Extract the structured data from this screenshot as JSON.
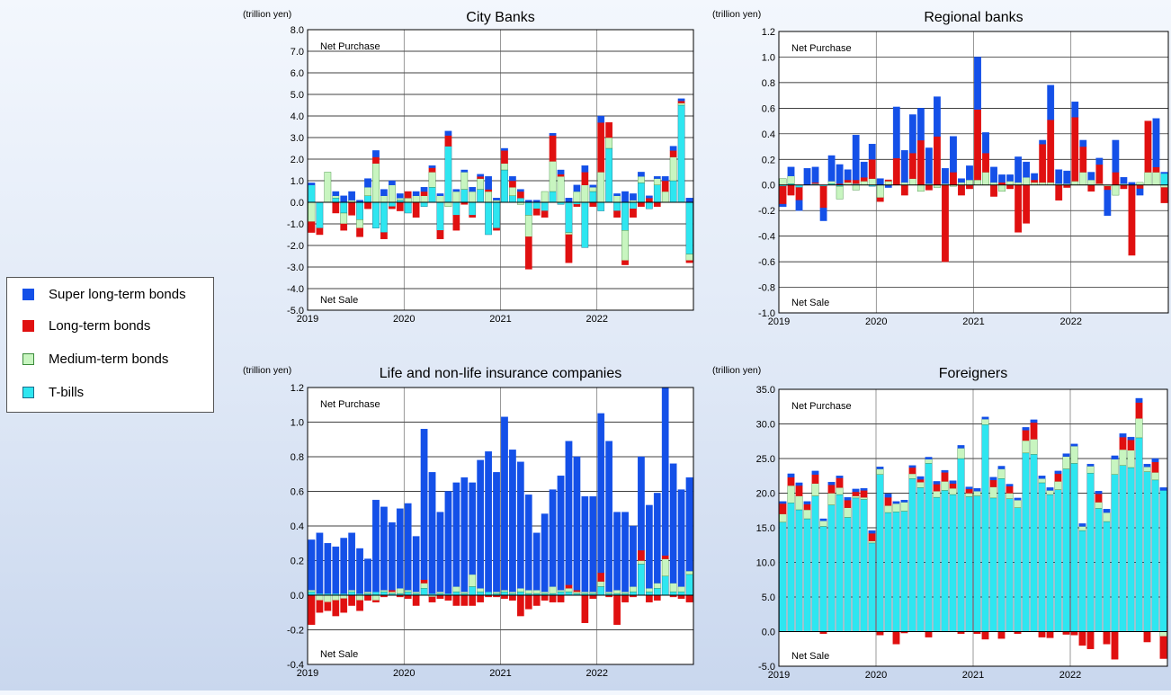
{
  "colors": {
    "super": "#1450e8",
    "long": "#e01010",
    "medium": "#c8f5c0",
    "tbills": "#2ee6f0"
  },
  "legend": {
    "super": "Super long-term bonds",
    "long": "Long-term bonds",
    "medium": "Medium-term bonds",
    "tbills": "T-bills"
  },
  "chart_data": [
    {
      "type": "bar",
      "title": "City Banks",
      "ylabel": "(trillion yen)",
      "ylim": [
        -5,
        8
      ],
      "yticks": [
        -5,
        -4,
        -3,
        -2,
        -1,
        0,
        1,
        2,
        3,
        4,
        5,
        6,
        7,
        8
      ],
      "ytick_decimals": 1,
      "x_labels": [
        "2019",
        "2020",
        "2021",
        "2022"
      ],
      "annot_top": "Net Purchase",
      "annot_bottom": "Net Sale",
      "months": 48,
      "series": {
        "super": [
          0.1,
          0,
          0,
          0.2,
          0.3,
          0.4,
          0.1,
          0.4,
          0.3,
          0.3,
          0.2,
          0.2,
          0,
          0.2,
          0.2,
          0.1,
          0.1,
          0.2,
          0.1,
          0.1,
          0.2,
          0.1,
          0.6,
          0.1,
          0.1,
          0.2,
          0.1,
          0.1,
          0.1,
          0,
          0.1,
          0.2,
          0.2,
          0.3,
          0.3,
          0.1,
          0.3,
          0,
          0.1,
          0.5,
          0.3,
          0.2,
          0.1,
          0.1,
          0.2,
          0.2,
          0.1,
          0.2
        ],
        "long": [
          -0.5,
          -0.3,
          0,
          -0.5,
          -0.3,
          -0.6,
          -0.4,
          -0.3,
          0.3,
          -0.3,
          -0.1,
          -0.4,
          0.3,
          -0.7,
          0.2,
          0.2,
          -0.4,
          0.5,
          -0.7,
          -0.1,
          -0.1,
          0.1,
          0.1,
          -0.1,
          0.6,
          0.3,
          0.3,
          -1.5,
          -0.3,
          -0.3,
          1.2,
          0.1,
          -1.3,
          -0.1,
          0.6,
          -0.2,
          2.3,
          0.7,
          -0.3,
          -0.2,
          -0.4,
          -0.2,
          0.2,
          -0.2,
          0.5,
          0.3,
          0.1,
          -0.1
        ],
        "medium": [
          -0.9,
          0,
          1.4,
          0.1,
          -0.5,
          0.1,
          -0.4,
          0.4,
          1.8,
          0.3,
          0.8,
          0.1,
          0.2,
          0.3,
          0.3,
          0.7,
          0.3,
          -0.2,
          0.5,
          0.8,
          0.5,
          0.5,
          0.5,
          0.1,
          0.3,
          0.4,
          -0.1,
          -1,
          0,
          0.5,
          1.4,
          1.2,
          -0.1,
          0.5,
          0.8,
          0.2,
          1.4,
          0.5,
          0.3,
          -1.4,
          0.1,
          0.3,
          0,
          0.3,
          0.5,
          1.1,
          0.1,
          -0.3
        ],
        "tbills": [
          0.8,
          -1.2,
          0,
          0.2,
          -0.5,
          0,
          -0.8,
          0.3,
          -1.2,
          -1.4,
          -0.2,
          0.1,
          -0.5,
          0,
          -0.2,
          0.7,
          -1.3,
          2.6,
          -0.6,
          0.6,
          -0.6,
          0.6,
          -1.5,
          -1.2,
          1.5,
          0.3,
          0.2,
          -0.6,
          -0.3,
          -0.4,
          0.5,
          -0.1,
          -1.4,
          -0.1,
          -2.1,
          0.5,
          -0.4,
          2.5,
          -0.4,
          -1.3,
          -0.3,
          0.9,
          -0.3,
          0.8,
          0,
          1,
          4.5,
          -2.4
        ]
      }
    },
    {
      "type": "bar",
      "title": "Regional banks",
      "ylabel": "(trillion yen)",
      "ylim": [
        -1,
        1.2
      ],
      "yticks": [
        -1,
        -0.8,
        -0.6,
        -0.4,
        -0.2,
        0,
        0.2,
        0.4,
        0.6,
        0.8,
        1,
        1.2
      ],
      "ytick_decimals": 1,
      "x_labels": [
        "2019",
        "2020",
        "2021",
        "2022"
      ],
      "annot_top": "Net Purchase",
      "annot_bottom": "Net Sale",
      "months": 48,
      "series": {
        "super": [
          -0.02,
          0.07,
          -0.08,
          0.13,
          0.12,
          -0.1,
          0.2,
          0.15,
          0.08,
          0.35,
          0.12,
          0.12,
          0.05,
          -0.02,
          0.4,
          0.25,
          0.3,
          0.25,
          0.28,
          0.31,
          0.12,
          0.28,
          0.03,
          0.11,
          0.41,
          0.16,
          0.12,
          0.06,
          0.05,
          0.2,
          0.12,
          0.05,
          0.03,
          0.27,
          0.11,
          0.1,
          0.12,
          0.05,
          0.06,
          0.05,
          -0.2,
          0.25,
          0.05,
          0.02,
          -0.05,
          0,
          0.38,
          0.01
        ],
        "long": [
          -0.14,
          -0.08,
          -0.1,
          0,
          0.01,
          -0.17,
          0,
          0.01,
          0.02,
          0.03,
          0.03,
          0.15,
          -0.03,
          0.01,
          0.21,
          -0.08,
          0.2,
          0.35,
          -0.04,
          0.38,
          -0.6,
          0.1,
          -0.08,
          -0.03,
          0.55,
          0.15,
          -0.09,
          0.02,
          -0.03,
          -0.37,
          -0.3,
          0.02,
          0.3,
          0.49,
          -0.12,
          -0.02,
          0.5,
          0.2,
          -0.05,
          0.15,
          -0.03,
          0.1,
          -0.03,
          -0.55,
          -0.03,
          0.4,
          0.04,
          -0.12
        ],
        "medium": [
          0.05,
          0.06,
          0,
          0,
          0,
          0,
          0.02,
          -0.1,
          0.02,
          -0.04,
          0.03,
          0.05,
          -0.1,
          0.03,
          0,
          0.02,
          0.05,
          -0.05,
          0.01,
          -0.02,
          0.01,
          -0.01,
          0.02,
          0.04,
          0.04,
          0.1,
          0.02,
          -0.05,
          0.03,
          0.02,
          0.06,
          0.02,
          0.02,
          0.02,
          0.01,
          0.01,
          0.03,
          0.1,
          0.04,
          0.01,
          -0.01,
          -0.08,
          0.01,
          0,
          0.02,
          0.1,
          0.1,
          -0.02
        ],
        "tbills": [
          -0.01,
          0.01,
          -0.02,
          0,
          0.01,
          -0.01,
          0.01,
          -0.01,
          0,
          0.01,
          0,
          -0.01,
          0,
          0,
          0,
          0,
          0,
          0,
          0,
          0,
          0,
          0,
          0,
          0,
          0,
          0,
          0,
          0,
          0,
          0,
          0,
          0,
          0,
          0,
          0,
          0,
          0,
          0,
          0,
          0,
          0,
          0,
          0,
          0,
          0,
          0,
          0,
          0.09
        ]
      }
    },
    {
      "type": "bar",
      "title": "Life and non-life insurance companies",
      "ylabel": "(trillion yen)",
      "ylim": [
        -0.4,
        1.2
      ],
      "yticks": [
        -0.4,
        -0.2,
        0,
        0.2,
        0.4,
        0.6,
        0.8,
        1,
        1.2
      ],
      "ytick_decimals": 1,
      "x_labels": [
        "2019",
        "2020",
        "2021",
        "2022"
      ],
      "annot_top": "Net Purchase",
      "annot_bottom": "Net Sale",
      "months": 48,
      "series": {
        "super": [
          0.29,
          0.35,
          0.29,
          0.27,
          0.32,
          0.33,
          0.26,
          0.19,
          0.53,
          0.48,
          0.39,
          0.46,
          0.5,
          0.32,
          0.87,
          0.7,
          0.46,
          0.59,
          0.6,
          0.66,
          0.53,
          0.74,
          0.81,
          0.69,
          1,
          0.82,
          0.73,
          0.55,
          0.33,
          0.45,
          0.56,
          0.66,
          0.83,
          0.77,
          0.55,
          0.55,
          0.92,
          0.87,
          0.45,
          0.46,
          0.35,
          0.54,
          0.48,
          0.52,
          1.06,
          0.69,
          0.56,
          0.54
        ],
        "long": [
          -0.17,
          -0.07,
          -0.05,
          -0.09,
          -0.08,
          -0.06,
          -0.06,
          -0.03,
          -0.01,
          -0.01,
          0.01,
          -0.01,
          -0.02,
          -0.06,
          0.02,
          -0.03,
          -0.02,
          -0.03,
          -0.06,
          -0.06,
          -0.06,
          -0.04,
          -0.01,
          -0.01,
          -0.02,
          -0.03,
          -0.12,
          -0.08,
          -0.06,
          -0.03,
          -0.04,
          -0.04,
          0.02,
          0.01,
          -0.16,
          -0.02,
          0.05,
          -0.01,
          -0.17,
          -0.04,
          -0.01,
          0.06,
          -0.04,
          -0.03,
          0.02,
          -0.01,
          -0.02,
          -0.04
        ],
        "medium": [
          0.01,
          -0.03,
          -0.04,
          -0.03,
          -0.02,
          0.01,
          -0.03,
          0.01,
          -0.03,
          0.01,
          0.01,
          0.03,
          0.01,
          0.01,
          0.03,
          -0.01,
          0.01,
          0,
          0.03,
          0.01,
          0.07,
          0.02,
          0,
          0.01,
          0.01,
          0.01,
          0.02,
          0.02,
          0.02,
          0.01,
          0.04,
          0.01,
          0.02,
          0.01,
          0.01,
          0.01,
          0.03,
          0.01,
          0.02,
          0.01,
          0.03,
          0.02,
          0.02,
          0.03,
          0.1,
          0.05,
          0.03,
          0.02
        ],
        "tbills": [
          0.02,
          0.01,
          0.01,
          0.01,
          0.01,
          0.02,
          0.01,
          0.01,
          0.02,
          0.02,
          0.01,
          0.01,
          0.02,
          0.01,
          0.04,
          0.01,
          0.01,
          0.01,
          0.02,
          0.01,
          0.05,
          0.02,
          0.02,
          0.01,
          0.02,
          0.01,
          0.02,
          0.01,
          0.01,
          0.01,
          0.01,
          0.02,
          0.02,
          0.01,
          0.01,
          0.01,
          0.05,
          0.01,
          0.01,
          0.01,
          0.02,
          0.18,
          0.02,
          0.04,
          0.11,
          0.02,
          0.02,
          0.12
        ]
      }
    },
    {
      "type": "bar",
      "title": "Foreigners",
      "ylabel": "(trillion yen)",
      "ylim": [
        -5,
        35
      ],
      "yticks": [
        -5,
        0,
        5,
        10,
        15,
        20,
        25,
        30,
        35
      ],
      "ytick_decimals": 1,
      "x_labels": [
        "2019",
        "2020",
        "2021",
        "2022"
      ],
      "annot_top": "Net Purchase",
      "annot_bottom": "Net Sale",
      "months": 48,
      "series": {
        "super": [
          0.3,
          0.5,
          0.4,
          0.4,
          0.5,
          0.3,
          0.4,
          0.3,
          0.4,
          0.4,
          0.3,
          0.4,
          0.3,
          0.5,
          0.3,
          0.3,
          0.3,
          0.4,
          0.3,
          0.4,
          0.3,
          0.4,
          0.4,
          0.3,
          0.4,
          0.3,
          0.4,
          0.4,
          0.3,
          0.3,
          0.4,
          0.4,
          0.4,
          0.4,
          0.4,
          0.4,
          0.3,
          0.4,
          0.3,
          0.4,
          0.5,
          0.5,
          0.5,
          0.4,
          0.6,
          0.4,
          0.5,
          0.4
        ],
        "long": [
          1.5,
          1.2,
          1.5,
          0.8,
          1.3,
          -0.3,
          1.2,
          1.4,
          1.1,
          0.6,
          1,
          1.1,
          -0.5,
          1.2,
          -1.8,
          -0.2,
          0.9,
          0.4,
          -0.8,
          1,
          1.3,
          0.7,
          -0.3,
          0.6,
          -0.3,
          -1.1,
          1,
          -1,
          1,
          -0.3,
          1.5,
          2.4,
          -0.8,
          -0.9,
          1.1,
          -0.4,
          -0.5,
          -2,
          -2.5,
          1.2,
          -1.8,
          -4,
          1.8,
          1.5,
          2.3,
          -1.5,
          1.5,
          -3.2
        ],
        "medium": [
          1.2,
          2.5,
          2,
          1.3,
          1.8,
          0.8,
          1.7,
          1,
          1.4,
          0.3,
          0.3,
          0.3,
          0.8,
          1,
          1.2,
          1.3,
          0.7,
          0.8,
          0.6,
          0.9,
          1.3,
          0.9,
          1.5,
          0.5,
          0.7,
          0.8,
          1.6,
          1.4,
          0.8,
          1.1,
          1.8,
          2.2,
          0.6,
          0.6,
          1.2,
          1.8,
          2.5,
          0.6,
          1,
          0.9,
          1.3,
          2.2,
          2.3,
          2.5,
          2.8,
          0.7,
          1.1,
          -0.7
        ],
        "tbills": [
          15.8,
          18.6,
          17.6,
          16.3,
          19.6,
          15.2,
          18.3,
          19.8,
          16.5,
          19.3,
          19.1,
          12.8,
          22.7,
          17.2,
          17.3,
          17.4,
          22.1,
          20.8,
          24.3,
          19.4,
          20.4,
          19.8,
          25,
          19.5,
          19.6,
          29.9,
          19.3,
          22.1,
          19.2,
          17.9,
          25.8,
          25.6,
          21.5,
          19.8,
          20.5,
          23.5,
          24.3,
          14.6,
          22.9,
          17.8,
          15.9,
          22.7,
          24,
          23.7,
          28,
          23.1,
          21.9,
          20.4
        ]
      }
    }
  ]
}
